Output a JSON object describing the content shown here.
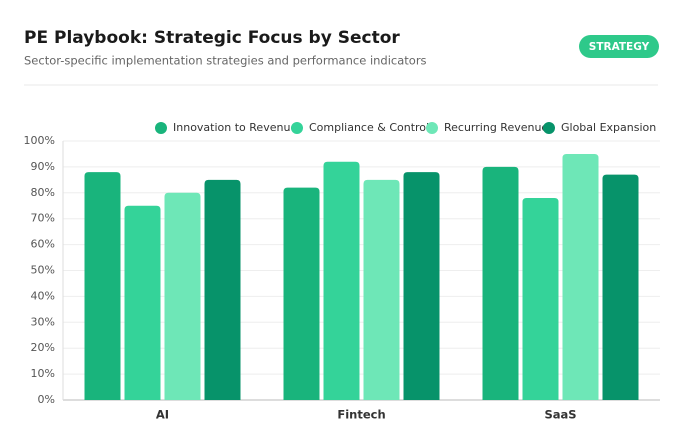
{
  "chart_data": {
    "type": "bar",
    "title": "PE Playbook: Strategic Focus by Sector",
    "subtitle": "Sector-specific implementation strategies and performance indicators",
    "badge": "STRATEGY",
    "categories": [
      "AI",
      "Fintech",
      "SaaS"
    ],
    "series": [
      {
        "name": "Innovation to Revenue",
        "color": "#19b47c",
        "values": [
          88,
          82,
          90
        ]
      },
      {
        "name": "Compliance & Control",
        "color": "#34d399",
        "values": [
          75,
          92,
          78
        ]
      },
      {
        "name": "Recurring Revenue",
        "color": "#6ee7b7",
        "values": [
          80,
          85,
          95
        ]
      },
      {
        "name": "Global Expansion",
        "color": "#07936a",
        "values": [
          85,
          88,
          87
        ]
      }
    ],
    "ylim": [
      0,
      100
    ],
    "yticks": [
      {
        "value": 0,
        "label": "0%"
      },
      {
        "value": 10,
        "label": "10%"
      },
      {
        "value": 20,
        "label": "20%"
      },
      {
        "value": 30,
        "label": "30%"
      },
      {
        "value": 40,
        "label": "40%"
      },
      {
        "value": 50,
        "label": "50%"
      },
      {
        "value": 60,
        "label": "60%"
      },
      {
        "value": 70,
        "label": "70%"
      },
      {
        "value": 80,
        "label": "80%"
      },
      {
        "value": 90,
        "label": "90%"
      },
      {
        "value": 100,
        "label": "100%"
      }
    ],
    "grid": true,
    "legend": "top-right"
  }
}
